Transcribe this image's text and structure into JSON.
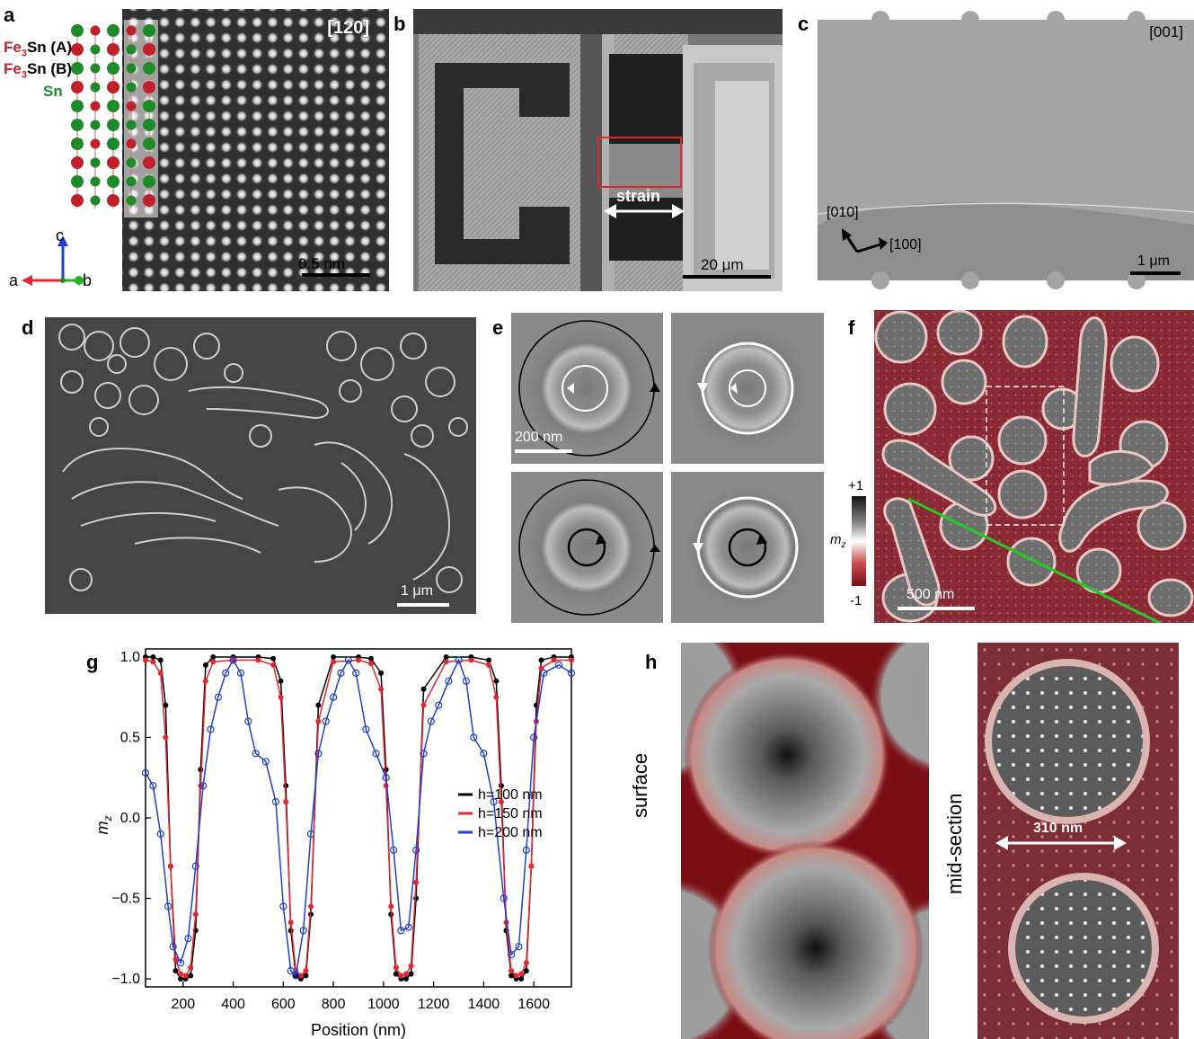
{
  "labels": {
    "a": "a",
    "b": "b",
    "c": "c",
    "d": "d",
    "e": "e",
    "f": "f",
    "g": "g",
    "h": "h"
  },
  "panel_a": {
    "zone": "[120]",
    "layer_a_sub": "3",
    "layer_a": "Fe3Sn (A)",
    "layer_a_pre": "Fe",
    "layer_a_post": "Sn (A)",
    "layer_b_pre": "Fe",
    "layer_b_post": "Sn (B)",
    "layer_sn": "Sn",
    "axis_c": "c",
    "axis_a": "a",
    "axis_b": "b",
    "scale": "0.5 nm",
    "colors": {
      "fe3sn_a": "#c0202a",
      "sn": "#1f8a2a"
    }
  },
  "panel_b": {
    "strain": "strain",
    "scale": "20 μm"
  },
  "panel_c": {
    "zone": "[001]",
    "dir1": "[010]",
    "dir2": "[100]",
    "scale": "1 μm"
  },
  "panel_d": {
    "scale": "1 μm"
  },
  "panel_e": {
    "scale": "200 nm"
  },
  "panel_f": {
    "scale": "500 nm",
    "cb_max": "+1",
    "cb_min": "-1",
    "cb_label": "m",
    "cb_label_sub": "z"
  },
  "panel_g": {
    "chart_data": {
      "type": "line",
      "xlabel": "Position (nm)",
      "ylabel": "m",
      "ylabel_sub": "z",
      "xlim": [
        50,
        1750
      ],
      "ylim": [
        -1.05,
        1.05
      ],
      "xticks": [
        200,
        400,
        600,
        800,
        1000,
        1200,
        1400,
        1600
      ],
      "yticks": [
        -1.0,
        -0.5,
        0.0,
        0.5,
        1.0
      ],
      "ytick_labels": [
        "−1.0",
        "−0.5",
        "0.0",
        "0.5",
        "1.0"
      ],
      "legend_position": "right",
      "series": [
        {
          "name": "h=100 nm",
          "color": "#000000",
          "x": [
            50,
            80,
            110,
            130,
            150,
            170,
            190,
            210,
            230,
            250,
            270,
            290,
            320,
            400,
            500,
            560,
            590,
            610,
            630,
            650,
            670,
            690,
            710,
            740,
            800,
            900,
            950,
            990,
            1010,
            1030,
            1050,
            1070,
            1090,
            1110,
            1130,
            1160,
            1250,
            1350,
            1420,
            1450,
            1470,
            1490,
            1510,
            1530,
            1550,
            1570,
            1590,
            1610,
            1630,
            1680,
            1750
          ],
          "y": [
            1.0,
            1.0,
            0.98,
            0.7,
            -0.3,
            -0.95,
            -1.0,
            -1.0,
            -0.98,
            -0.7,
            0.3,
            0.95,
            1.0,
            1.0,
            1.0,
            0.99,
            0.85,
            0.2,
            -0.7,
            -0.98,
            -1.0,
            -0.98,
            -0.6,
            0.7,
            1.0,
            1.0,
            0.99,
            0.9,
            0.3,
            -0.6,
            -0.97,
            -1.0,
            -1.0,
            -0.97,
            -0.5,
            0.8,
            1.0,
            1.0,
            0.98,
            0.85,
            0.2,
            -0.7,
            -0.98,
            -1.0,
            -1.0,
            -0.95,
            -0.3,
            0.7,
            0.98,
            1.0,
            1.0
          ]
        },
        {
          "name": "h=150 nm",
          "color": "#e3262f",
          "x": [
            50,
            80,
            110,
            130,
            150,
            170,
            190,
            210,
            230,
            250,
            270,
            290,
            320,
            400,
            500,
            560,
            590,
            610,
            630,
            650,
            670,
            690,
            710,
            740,
            800,
            900,
            950,
            990,
            1010,
            1030,
            1050,
            1070,
            1090,
            1110,
            1130,
            1160,
            1250,
            1350,
            1420,
            1450,
            1470,
            1490,
            1510,
            1530,
            1550,
            1570,
            1590,
            1610,
            1630,
            1680,
            1750
          ],
          "y": [
            0.98,
            0.97,
            0.9,
            0.5,
            -0.3,
            -0.88,
            -0.97,
            -0.98,
            -0.93,
            -0.6,
            0.2,
            0.85,
            0.97,
            0.98,
            0.98,
            0.95,
            0.75,
            0.1,
            -0.65,
            -0.95,
            -0.98,
            -0.95,
            -0.55,
            0.6,
            0.97,
            0.98,
            0.96,
            0.8,
            0.2,
            -0.55,
            -0.93,
            -0.98,
            -0.97,
            -0.92,
            -0.4,
            0.7,
            0.97,
            0.98,
            0.95,
            0.75,
            0.1,
            -0.65,
            -0.95,
            -0.98,
            -0.97,
            -0.9,
            -0.3,
            0.6,
            0.93,
            0.98,
            0.98
          ]
        },
        {
          "name": "h=200 nm",
          "color": "#1f3fd0",
          "x": [
            50,
            80,
            110,
            140,
            160,
            190,
            220,
            250,
            280,
            310,
            340,
            370,
            400,
            430,
            460,
            490,
            530,
            570,
            600,
            630,
            650,
            680,
            710,
            740,
            770,
            800,
            830,
            860,
            890,
            930,
            970,
            1010,
            1040,
            1070,
            1100,
            1130,
            1160,
            1190,
            1220,
            1260,
            1300,
            1330,
            1360,
            1400,
            1440,
            1480,
            1510,
            1540,
            1570,
            1600,
            1640,
            1700,
            1750
          ],
          "y": [
            0.28,
            0.2,
            -0.1,
            -0.55,
            -0.8,
            -0.9,
            -0.75,
            -0.3,
            0.2,
            0.55,
            0.75,
            0.9,
            0.98,
            0.9,
            0.6,
            0.4,
            0.35,
            0.1,
            -0.55,
            -0.95,
            -0.98,
            -0.7,
            -0.1,
            0.4,
            0.6,
            0.75,
            0.9,
            0.98,
            0.9,
            0.55,
            0.4,
            0.25,
            -0.2,
            -0.7,
            -0.68,
            -0.2,
            0.4,
            0.6,
            0.7,
            0.85,
            0.98,
            0.85,
            0.5,
            0.4,
            0.1,
            -0.5,
            -0.85,
            -0.8,
            -0.2,
            0.5,
            0.9,
            0.95,
            0.9
          ]
        }
      ]
    }
  },
  "panel_h": {
    "surface": "surface",
    "midsection": "mid-section",
    "dimension": "310 nm"
  }
}
